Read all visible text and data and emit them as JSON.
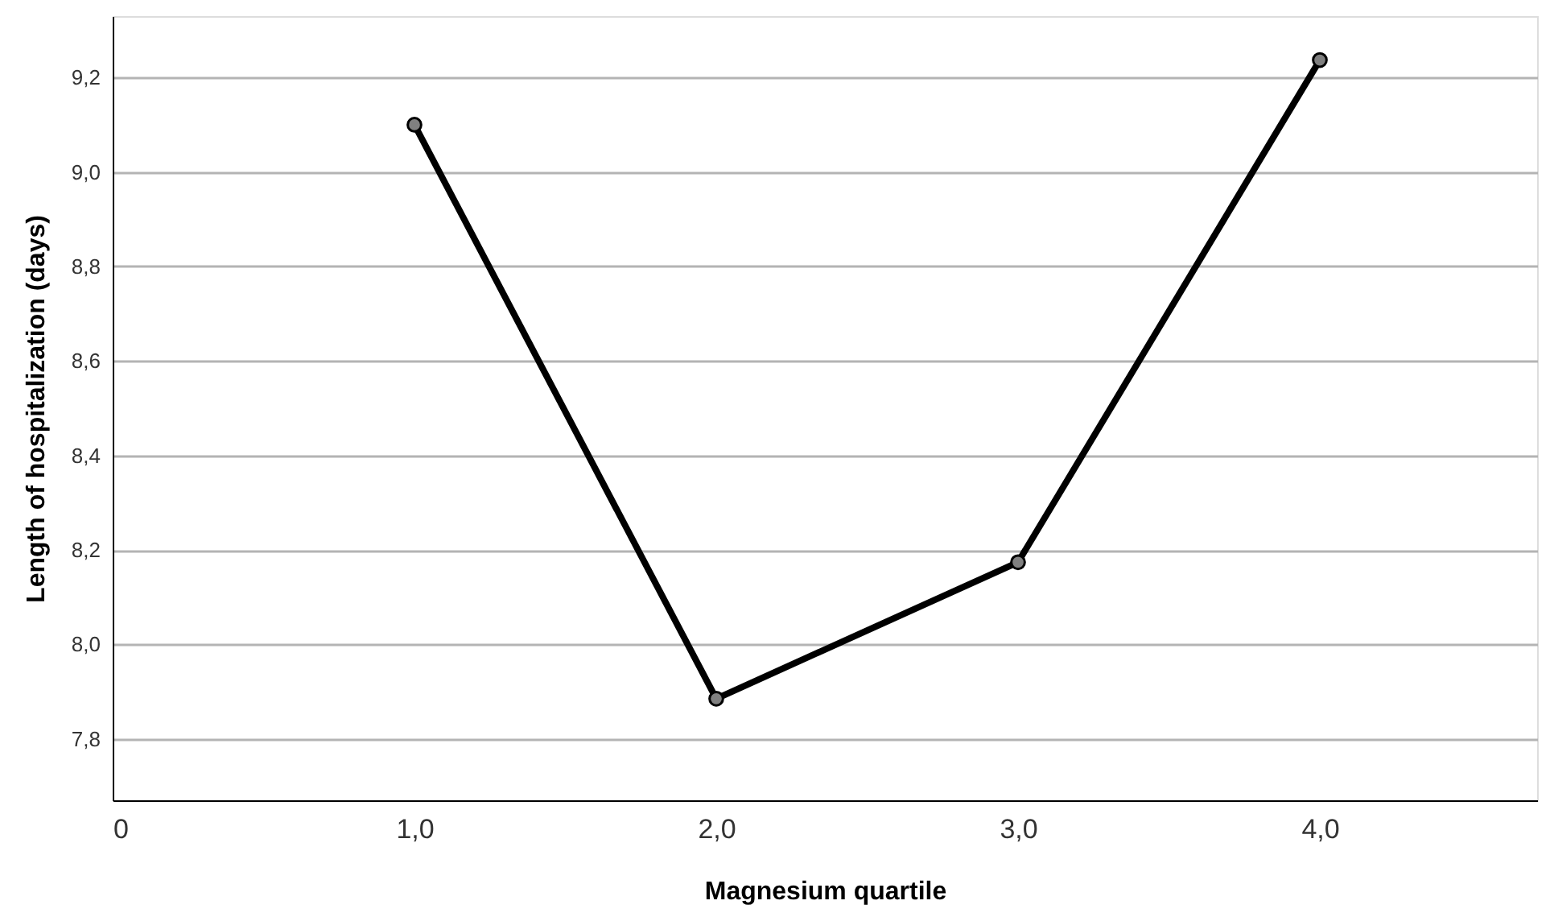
{
  "chart_data": {
    "type": "line",
    "xlabel": "Magnesium quartile",
    "ylabel": "Length of hospitalization (days)",
    "x": [
      1,
      2,
      3,
      4
    ],
    "series": [
      {
        "color": "#000000",
        "values": [
          9.1,
          7.885,
          8.174,
          9.237
        ]
      }
    ],
    "xlim": [
      0,
      4.72
    ],
    "xticks": [
      0,
      {
        "value": 1,
        "label": "1,0"
      },
      {
        "value": 2,
        "label": "2,0"
      },
      {
        "value": 3,
        "label": "3,0"
      },
      {
        "value": 4,
        "label": "4,0"
      }
    ],
    "ylim": [
      7.67,
      9.33
    ],
    "yticks": [
      {
        "value": 7.8,
        "label": "7,8"
      },
      {
        "value": 8.0,
        "label": "8,0"
      },
      {
        "value": 8.2,
        "label": "8,2"
      },
      {
        "value": 8.4,
        "label": "8,4"
      },
      {
        "value": 8.6,
        "label": "8,6"
      },
      {
        "value": 8.8,
        "label": "8,8"
      },
      {
        "value": 9.0,
        "label": "9,0"
      },
      {
        "value": 9.2,
        "label": "9,2"
      }
    ],
    "grid": "y",
    "marker": "circle",
    "line_style": "solid"
  }
}
